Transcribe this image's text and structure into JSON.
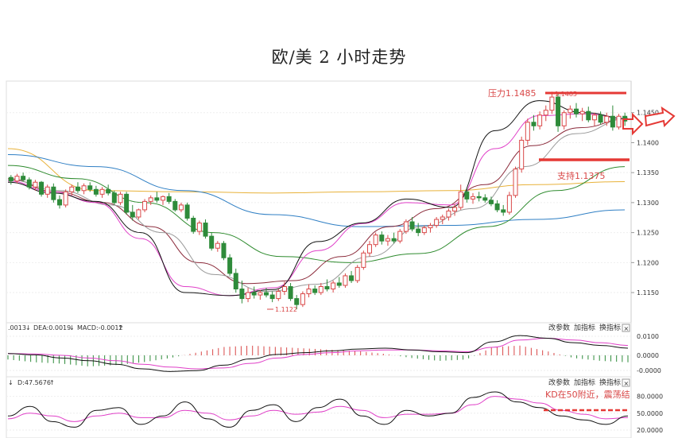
{
  "page": {
    "title": "欧/美 2 小时走势"
  },
  "colors": {
    "up": "#d94848",
    "down": "#2e8b3a",
    "ma5": "#111111",
    "ma10": "#e040c8",
    "ma20": "#999999",
    "ma30": "#8b2a3a",
    "ma60": "#2e8b2e",
    "ma120": "#2f7fc4",
    "ma250": "#e8b23a",
    "macd_dea": "#e040c8",
    "kdj_d": "#e040c8",
    "resistance": "#e53935",
    "support": "#e53935"
  },
  "chart_data": [
    {
      "type": "candlestick",
      "panel": "price",
      "y_ticks": [
        "1.1150",
        "1.1200",
        "1.1250",
        "1.1300",
        "1.1350",
        "1.1400",
        "1.1450"
      ],
      "ylim": [
        1.1105,
        1.15
      ],
      "candles_ohlc": [
        [
          1.1342,
          1.1346,
          1.133,
          1.1336
        ],
        [
          1.1336,
          1.1348,
          1.1332,
          1.1344
        ],
        [
          1.1344,
          1.135,
          1.1335,
          1.1338
        ],
        [
          1.1338,
          1.1342,
          1.1322,
          1.1326
        ],
        [
          1.1326,
          1.1338,
          1.132,
          1.1334
        ],
        [
          1.1334,
          1.1336,
          1.131,
          1.1314
        ],
        [
          1.1314,
          1.133,
          1.1308,
          1.1326
        ],
        [
          1.1326,
          1.1332,
          1.13,
          1.1305
        ],
        [
          1.1305,
          1.1312,
          1.129,
          1.1296
        ],
        [
          1.1296,
          1.1322,
          1.1292,
          1.1318
        ],
        [
          1.1318,
          1.133,
          1.1312,
          1.1326
        ],
        [
          1.1326,
          1.1334,
          1.1316,
          1.132
        ],
        [
          1.132,
          1.1332,
          1.1314,
          1.1328
        ],
        [
          1.1328,
          1.1334,
          1.1318,
          1.1322
        ],
        [
          1.1322,
          1.1328,
          1.131,
          1.1314
        ],
        [
          1.1314,
          1.1326,
          1.1308,
          1.1322
        ],
        [
          1.1322,
          1.133,
          1.1312,
          1.1316
        ],
        [
          1.1316,
          1.132,
          1.1296,
          1.13
        ],
        [
          1.13,
          1.1318,
          1.1296,
          1.1314
        ],
        [
          1.1314,
          1.1318,
          1.128,
          1.1284
        ],
        [
          1.1284,
          1.1296,
          1.127,
          1.1276
        ],
        [
          1.1276,
          1.129,
          1.1272,
          1.1288
        ],
        [
          1.1288,
          1.1306,
          1.1284,
          1.1302
        ],
        [
          1.1302,
          1.1312,
          1.1296,
          1.1308
        ],
        [
          1.1308,
          1.1318,
          1.13,
          1.1304
        ],
        [
          1.1304,
          1.1312,
          1.1296,
          1.131
        ],
        [
          1.131,
          1.1316,
          1.1298,
          1.1302
        ],
        [
          1.1302,
          1.1306,
          1.1285,
          1.1288
        ],
        [
          1.1288,
          1.13,
          1.1284,
          1.1296
        ],
        [
          1.1296,
          1.13,
          1.127,
          1.1274
        ],
        [
          1.1274,
          1.1278,
          1.1248,
          1.1252
        ],
        [
          1.1252,
          1.127,
          1.1246,
          1.1266
        ],
        [
          1.1266,
          1.1272,
          1.124,
          1.1244
        ],
        [
          1.1244,
          1.125,
          1.122,
          1.1224
        ],
        [
          1.1224,
          1.1236,
          1.1218,
          1.1232
        ],
        [
          1.1232,
          1.1236,
          1.1204,
          1.1208
        ],
        [
          1.1208,
          1.1214,
          1.1178,
          1.1182
        ],
        [
          1.1182,
          1.119,
          1.115,
          1.1156
        ],
        [
          1.1156,
          1.117,
          1.1132,
          1.114
        ],
        [
          1.114,
          1.1158,
          1.1134,
          1.115
        ],
        [
          1.115,
          1.116,
          1.114,
          1.1146
        ],
        [
          1.1146,
          1.1154,
          1.1138,
          1.115
        ],
        [
          1.115,
          1.1158,
          1.1142,
          1.1146
        ],
        [
          1.1146,
          1.1152,
          1.1134,
          1.114
        ],
        [
          1.114,
          1.1156,
          1.1136,
          1.1152
        ],
        [
          1.1152,
          1.1168,
          1.1146,
          1.116
        ],
        [
          1.116,
          1.1166,
          1.1136,
          1.114
        ],
        [
          1.114,
          1.1146,
          1.1122,
          1.113
        ],
        [
          1.113,
          1.1152,
          1.1126,
          1.1148
        ],
        [
          1.1148,
          1.1164,
          1.1142,
          1.1156
        ],
        [
          1.1156,
          1.1162,
          1.1146,
          1.115
        ],
        [
          1.115,
          1.1166,
          1.1146,
          1.116
        ],
        [
          1.116,
          1.1172,
          1.1152,
          1.1156
        ],
        [
          1.1156,
          1.117,
          1.115,
          1.1166
        ],
        [
          1.1166,
          1.1176,
          1.1158,
          1.1162
        ],
        [
          1.1162,
          1.1182,
          1.1158,
          1.1178
        ],
        [
          1.1178,
          1.1186,
          1.1166,
          1.117
        ],
        [
          1.117,
          1.1196,
          1.1166,
          1.1192
        ],
        [
          1.1192,
          1.122,
          1.1188,
          1.1216
        ],
        [
          1.1216,
          1.1236,
          1.121,
          1.123
        ],
        [
          1.123,
          1.125,
          1.1226,
          1.1246
        ],
        [
          1.1246,
          1.1252,
          1.123,
          1.1236
        ],
        [
          1.1236,
          1.1246,
          1.1228,
          1.124
        ],
        [
          1.124,
          1.125,
          1.1232,
          1.1236
        ],
        [
          1.1236,
          1.1256,
          1.1232,
          1.1252
        ],
        [
          1.1252,
          1.1272,
          1.1248,
          1.1268
        ],
        [
          1.1268,
          1.1276,
          1.1252,
          1.1256
        ],
        [
          1.1256,
          1.1266,
          1.1244,
          1.125
        ],
        [
          1.125,
          1.1262,
          1.1246,
          1.1258
        ],
        [
          1.1258,
          1.1266,
          1.125,
          1.1262
        ],
        [
          1.1262,
          1.1276,
          1.1258,
          1.1272
        ],
        [
          1.1272,
          1.128,
          1.1264,
          1.1276
        ],
        [
          1.1276,
          1.129,
          1.127,
          1.1286
        ],
        [
          1.1286,
          1.1298,
          1.1278,
          1.1292
        ],
        [
          1.1292,
          1.133,
          1.1288,
          1.1318
        ],
        [
          1.1318,
          1.1324,
          1.13,
          1.1306
        ],
        [
          1.1306,
          1.1316,
          1.1298,
          1.131
        ],
        [
          1.131,
          1.1318,
          1.1302,
          1.1308
        ],
        [
          1.1308,
          1.1314,
          1.13,
          1.1304
        ],
        [
          1.1304,
          1.131,
          1.1294,
          1.1298
        ],
        [
          1.1298,
          1.1304,
          1.1284,
          1.1288
        ],
        [
          1.1288,
          1.1296,
          1.1278,
          1.1284
        ],
        [
          1.1284,
          1.1318,
          1.128,
          1.1312
        ],
        [
          1.1312,
          1.136,
          1.1308,
          1.1356
        ],
        [
          1.1356,
          1.141,
          1.135,
          1.1404
        ],
        [
          1.1404,
          1.144,
          1.1396,
          1.1434
        ],
        [
          1.1434,
          1.1446,
          1.142,
          1.1428
        ],
        [
          1.1428,
          1.1452,
          1.1422,
          1.1446
        ],
        [
          1.1446,
          1.1462,
          1.1436,
          1.1454
        ],
        [
          1.1454,
          1.1485,
          1.1448,
          1.1476
        ],
        [
          1.1476,
          1.1484,
          1.1418,
          1.1428
        ],
        [
          1.1428,
          1.1454,
          1.1422,
          1.145
        ],
        [
          1.145,
          1.1462,
          1.144,
          1.1456
        ],
        [
          1.1456,
          1.1466,
          1.1442,
          1.1448
        ],
        [
          1.1448,
          1.1458,
          1.1436,
          1.1452
        ],
        [
          1.1452,
          1.146,
          1.1434,
          1.1438
        ],
        [
          1.1438,
          1.145,
          1.1428,
          1.1446
        ],
        [
          1.1446,
          1.1452,
          1.143,
          1.1434
        ],
        [
          1.1434,
          1.145,
          1.1428,
          1.1444
        ],
        [
          1.1444,
          1.1462,
          1.142,
          1.1426
        ],
        [
          1.1426,
          1.1448,
          1.1422,
          1.1444
        ],
        [
          1.1444,
          1.145,
          1.1428,
          1.1436
        ]
      ],
      "moving_averages": [
        {
          "key": "ma250",
          "values": [
            1.139,
            1.132,
            1.1318,
            1.1316,
            1.1318,
            1.132,
            1.133,
            1.1335
          ]
        },
        {
          "key": "ma120",
          "values": [
            1.138,
            1.136,
            1.132,
            1.128,
            1.126,
            1.1262,
            1.1272,
            1.1288
          ]
        },
        {
          "key": "ma60",
          "values": [
            1.1362,
            1.134,
            1.13,
            1.125,
            1.121,
            1.12,
            1.1215,
            1.126,
            1.132,
            1.136
          ]
        },
        {
          "key": "ma30",
          "values": [
            1.134,
            1.1318,
            1.13,
            1.126,
            1.12,
            1.1165,
            1.117,
            1.121,
            1.126,
            1.129,
            1.133,
            1.1395,
            1.1425,
            1.144
          ]
        },
        {
          "key": "ma20",
          "values": [
            1.1338,
            1.132,
            1.1296,
            1.125,
            1.118,
            1.1152,
            1.1164,
            1.121,
            1.126,
            1.129,
            1.136,
            1.1415,
            1.144
          ]
        },
        {
          "key": "ma10",
          "values": [
            1.1336,
            1.1318,
            1.13,
            1.124,
            1.116,
            1.1145,
            1.1158,
            1.122,
            1.1265,
            1.13,
            1.1296,
            1.139,
            1.1445,
            1.1448,
            1.144
          ]
        },
        {
          "key": "ma5",
          "values": [
            1.1334,
            1.1316,
            1.1302,
            1.125,
            1.115,
            1.1145,
            1.1155,
            1.1235,
            1.1266,
            1.1306,
            1.1292,
            1.142,
            1.147,
            1.145,
            1.144
          ]
        }
      ],
      "annotations": {
        "resistance": {
          "label": "压力1.1485",
          "value": 1.1485
        },
        "support": {
          "label": "支持1.1375",
          "value": 1.1375
        },
        "high_label": "1.1485",
        "low_label": "1.1122"
      }
    },
    {
      "type": "macd",
      "panel": "macd",
      "legend": {
        "diff": ".0013",
        "dea": "DEA:0.0019",
        "macd": "MACD:-0.0012"
      },
      "y_ticks": [
        "0.0100",
        "0.0000",
        "-0.0000"
      ],
      "ylim": [
        -0.004,
        0.005
      ],
      "buttons": [
        "改参数",
        "加指标",
        "换指标"
      ],
      "diff": [
        0.0004,
        0.0001,
        -0.0006,
        -0.0012,
        -0.002,
        -0.003,
        -0.0036,
        -0.0034,
        -0.0022,
        -0.0008,
        0.0002,
        0.0006,
        0.001,
        0.0014,
        0.0016,
        0.0012,
        0.0008,
        0.0006,
        0.003,
        0.0044,
        0.0038,
        0.0028,
        0.0022,
        0.0016
      ],
      "dea": [
        0.0004,
        0.0003,
        0.0,
        -0.0006,
        -0.0012,
        -0.002,
        -0.0026,
        -0.003,
        -0.0028,
        -0.0018,
        -0.0006,
        0.0002,
        0.0006,
        0.001,
        0.0012,
        0.0012,
        0.001,
        0.0008,
        0.0018,
        0.0034,
        0.0038,
        0.0034,
        0.0028,
        0.0022
      ],
      "histogram": [
        -0.0006,
        -0.001,
        -0.0012,
        -0.0016,
        -0.0014,
        -0.001,
        -0.0004,
        0.0004,
        0.0012,
        0.0014,
        0.0012,
        0.001,
        0.0008,
        0.0006,
        0.0002,
        -0.0004,
        -0.0008,
        -0.0006,
        0.0012,
        0.0014,
        0.0006,
        -0.0004,
        -0.0008,
        -0.001
      ]
    },
    {
      "type": "kdj",
      "panel": "kdj",
      "legend": {
        "k": "",
        "d": "D:47.5676"
      },
      "y_ticks": [
        "80.0000",
        "50.0000",
        "20.0000"
      ],
      "ylim": [
        10,
        95
      ],
      "buttons": [
        "改参数",
        "加指标",
        "换指标"
      ],
      "annotation": "KD在50附近，震荡结",
      "k": [
        45,
        62,
        35,
        25,
        55,
        60,
        30,
        45,
        70,
        40,
        25,
        55,
        65,
        35,
        60,
        75,
        45,
        30,
        55,
        45,
        50,
        78,
        88,
        70,
        60,
        45,
        38,
        30,
        45
      ],
      "d": [
        40,
        50,
        45,
        35,
        45,
        50,
        42,
        42,
        55,
        50,
        38,
        45,
        55,
        48,
        52,
        62,
        55,
        42,
        48,
        48,
        50,
        65,
        80,
        75,
        68,
        55,
        48,
        40,
        42
      ]
    }
  ]
}
